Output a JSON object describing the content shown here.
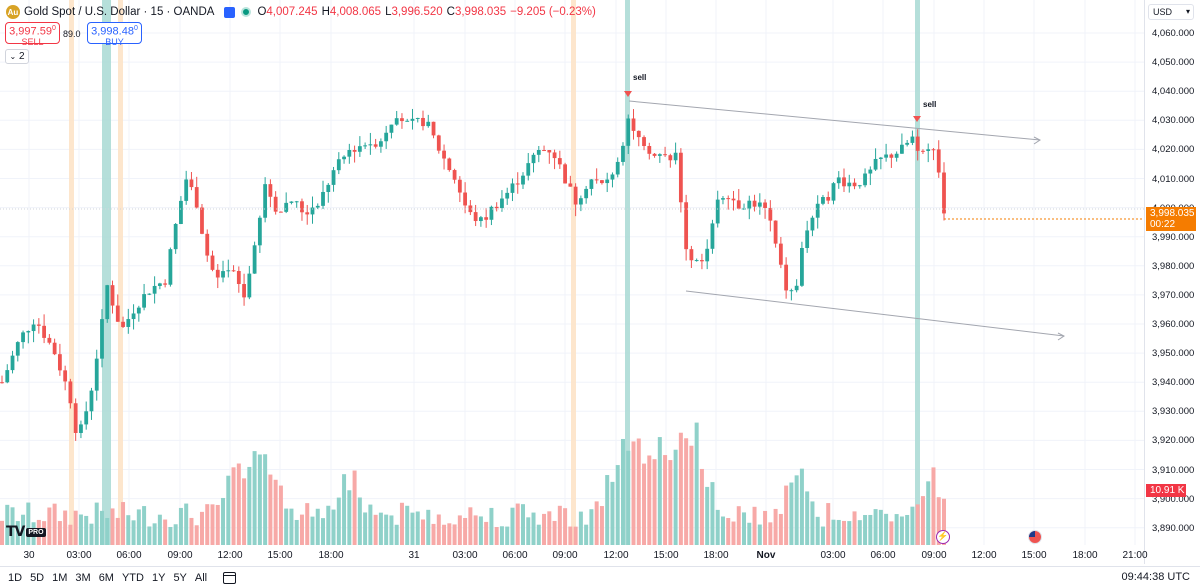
{
  "header": {
    "title": "Gold Spot / U.S. Dollar · 15 · OANDA",
    "open_label": "O",
    "open": "4,007.245",
    "high_label": "H",
    "high": "4,008.065",
    "low_label": "L",
    "low": "3,996.520",
    "close_label": "C",
    "close": "3,998.035",
    "change": "−9.205 (−0.23%)"
  },
  "trade": {
    "sell_price": "3,997.59",
    "sell_price_sup": "0",
    "sell_label": "SELL",
    "spread": "89.0",
    "buy_price": "3,998.48",
    "buy_price_sup": "0",
    "buy_label": "BUY"
  },
  "indicators_toggle": "2",
  "currency": "USD",
  "last_price": {
    "price": "3,998.035",
    "countdown": "00:22",
    "color": "#f57c00"
  },
  "volume_tag": "10.91 K",
  "colors": {
    "up": "#26a69a",
    "down": "#ef5350",
    "up_volume": "#8fd1c9",
    "down_volume": "#f7a9a7",
    "accent": "#2962ff"
  },
  "price_axis": [
    "4,060.000",
    "4,050.000",
    "4,040.000",
    "4,030.000",
    "4,020.000",
    "4,010.000",
    "4,000.000",
    "3,990.000",
    "3,980.000",
    "3,970.000",
    "3,960.000",
    "3,950.000",
    "3,940.000",
    "3,930.000",
    "3,920.000",
    "3,910.000",
    "3,900.000",
    "3,890.000"
  ],
  "time_axis": [
    {
      "label": "30",
      "bold": false
    },
    {
      "label": "03:00",
      "bold": false
    },
    {
      "label": "06:00",
      "bold": false
    },
    {
      "label": "09:00",
      "bold": false
    },
    {
      "label": "12:00",
      "bold": false
    },
    {
      "label": "15:00",
      "bold": false
    },
    {
      "label": "18:00",
      "bold": false
    },
    {
      "label": "31",
      "bold": false
    },
    {
      "label": "03:00",
      "bold": false
    },
    {
      "label": "06:00",
      "bold": false
    },
    {
      "label": "09:00",
      "bold": false
    },
    {
      "label": "12:00",
      "bold": false
    },
    {
      "label": "15:00",
      "bold": false
    },
    {
      "label": "18:00",
      "bold": false
    },
    {
      "label": "Nov",
      "bold": true
    },
    {
      "label": "03:00",
      "bold": false
    },
    {
      "label": "06:00",
      "bold": false
    },
    {
      "label": "09:00",
      "bold": false
    },
    {
      "label": "12:00",
      "bold": false
    },
    {
      "label": "15:00",
      "bold": false
    },
    {
      "label": "18:00",
      "bold": false
    },
    {
      "label": "21:00",
      "bold": false
    }
  ],
  "signals": [
    {
      "label": "sell"
    },
    {
      "label": "sell"
    }
  ],
  "date_ranges": [
    "1D",
    "5D",
    "1M",
    "3M",
    "6M",
    "YTD",
    "1Y",
    "5Y",
    "All"
  ],
  "clock": "09:44:38 UTC",
  "icons": {
    "calendar": "calendar-icon",
    "logo": "tradingview-logo",
    "economic_event": "flash-icon",
    "country_event": "us-flag-icon"
  }
}
